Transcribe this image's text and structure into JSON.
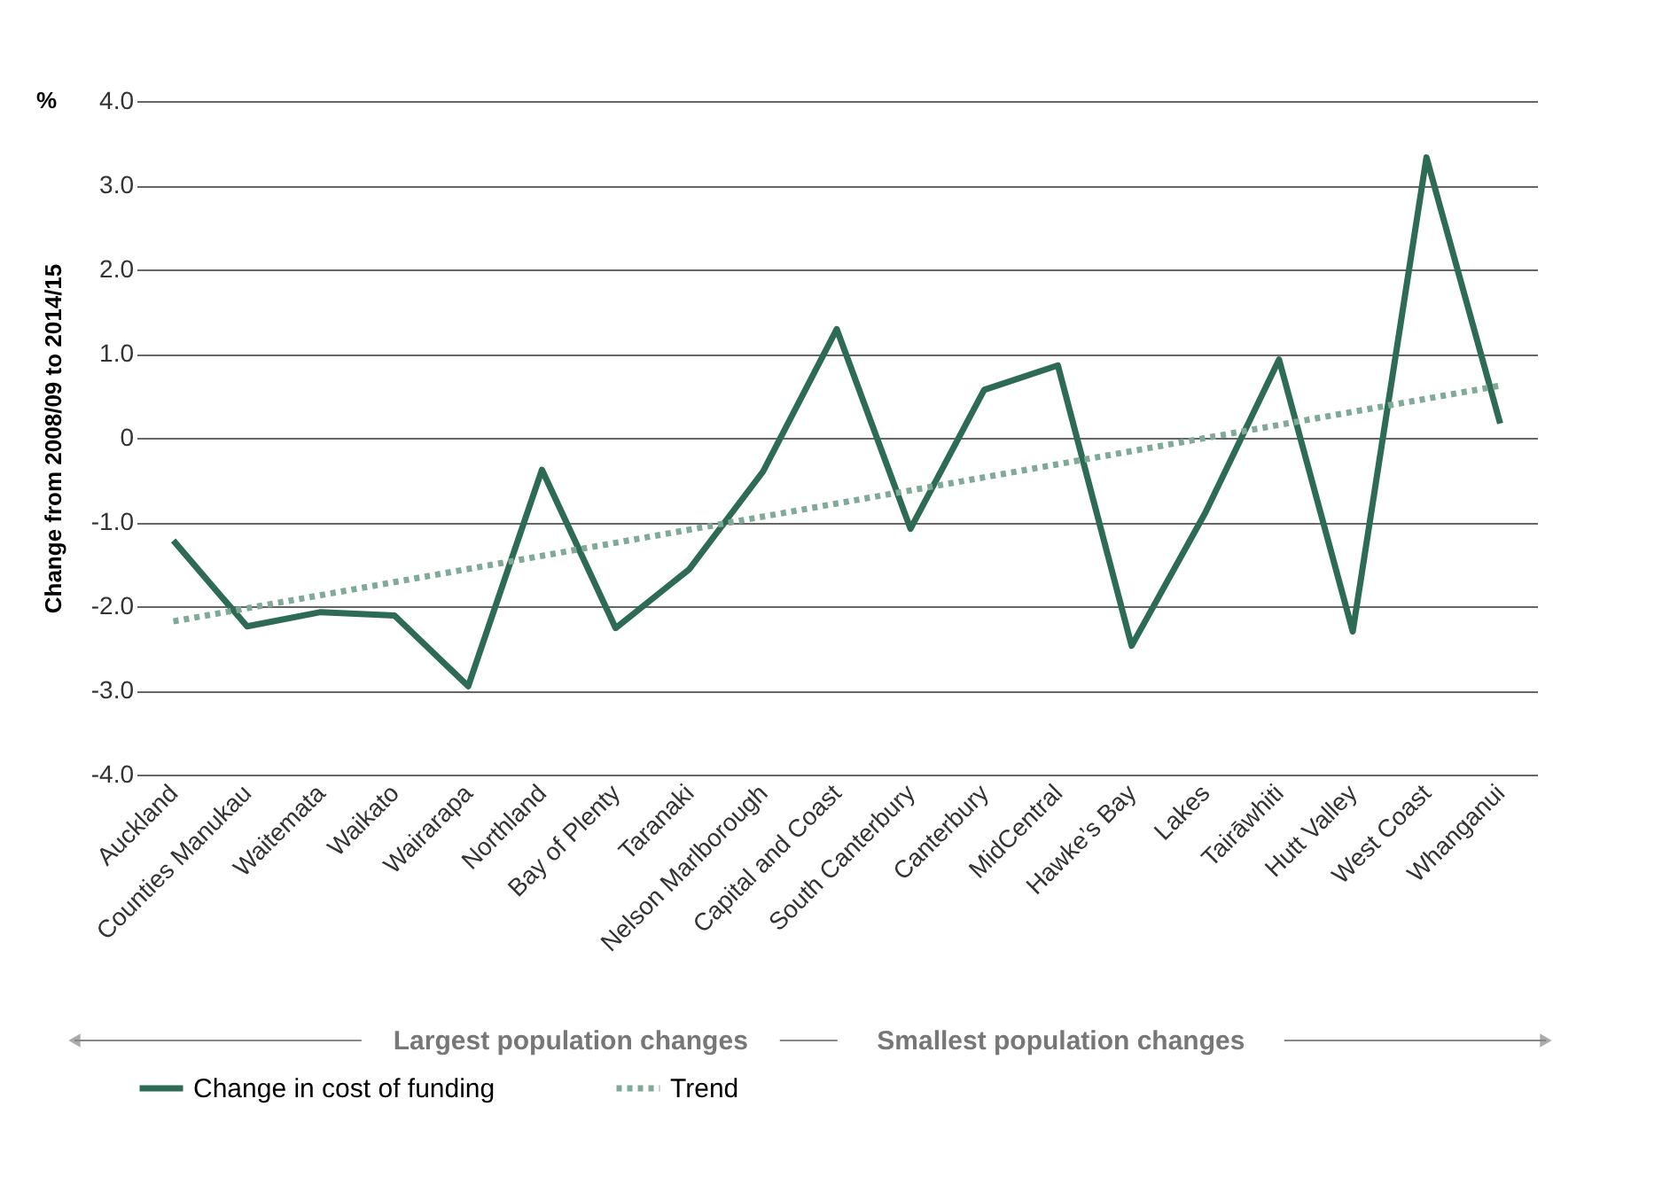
{
  "chart_data": {
    "type": "line",
    "ylabel": "Change from 2008/09 to 2014/15",
    "categories": [
      "Auckland",
      "Counties Manukau",
      "Waitemata",
      "Waikato",
      "Wairarapa",
      "Northland",
      "Bay of Plenty",
      "Taranaki",
      "Nelson Marlborough",
      "Capital and Coast",
      "South Canterbury",
      "Canterbury",
      "MidCentral",
      "Hawke’s Bay",
      "Lakes",
      "Tairāwhiti",
      "Hutt Valley",
      "West Coast",
      "Whanganui"
    ],
    "series": [
      {
        "name": "Change in cost of funding",
        "color": "#2e6b55",
        "line_style": "solid",
        "values": [
          -1.22,
          -2.24,
          -2.07,
          -2.11,
          -2.95,
          -0.38,
          -2.26,
          -1.56,
          -0.4,
          1.29,
          -1.08,
          0.57,
          0.86,
          -2.47,
          -0.89,
          0.93,
          -2.3,
          3.33,
          0.17
        ]
      },
      {
        "name": "Trend",
        "color": "#7faa98",
        "line_style": "dotted",
        "x": [
          "Auckland",
          "Whanganui"
        ],
        "values": [
          -2.18,
          0.62
        ]
      }
    ],
    "ylim": [
      -4,
      4
    ],
    "yticks": [
      {
        "value": -4,
        "label": "-4.0"
      },
      {
        "value": -3,
        "label": "-3.0"
      },
      {
        "value": -2,
        "label": "-2.0"
      },
      {
        "value": -1,
        "label": "-1.0"
      },
      0,
      {
        "value": 1,
        "label": "1.0"
      },
      {
        "value": 2,
        "label": "2.0"
      },
      {
        "value": 3,
        "label": "3.0"
      },
      {
        "value": 4,
        "label": "4.0"
      }
    ],
    "grid": "y",
    "legend": "bottom",
    "marker": "none",
    "annotations": [
      "%",
      "Largest population changes",
      "Smallest population changes"
    ]
  }
}
